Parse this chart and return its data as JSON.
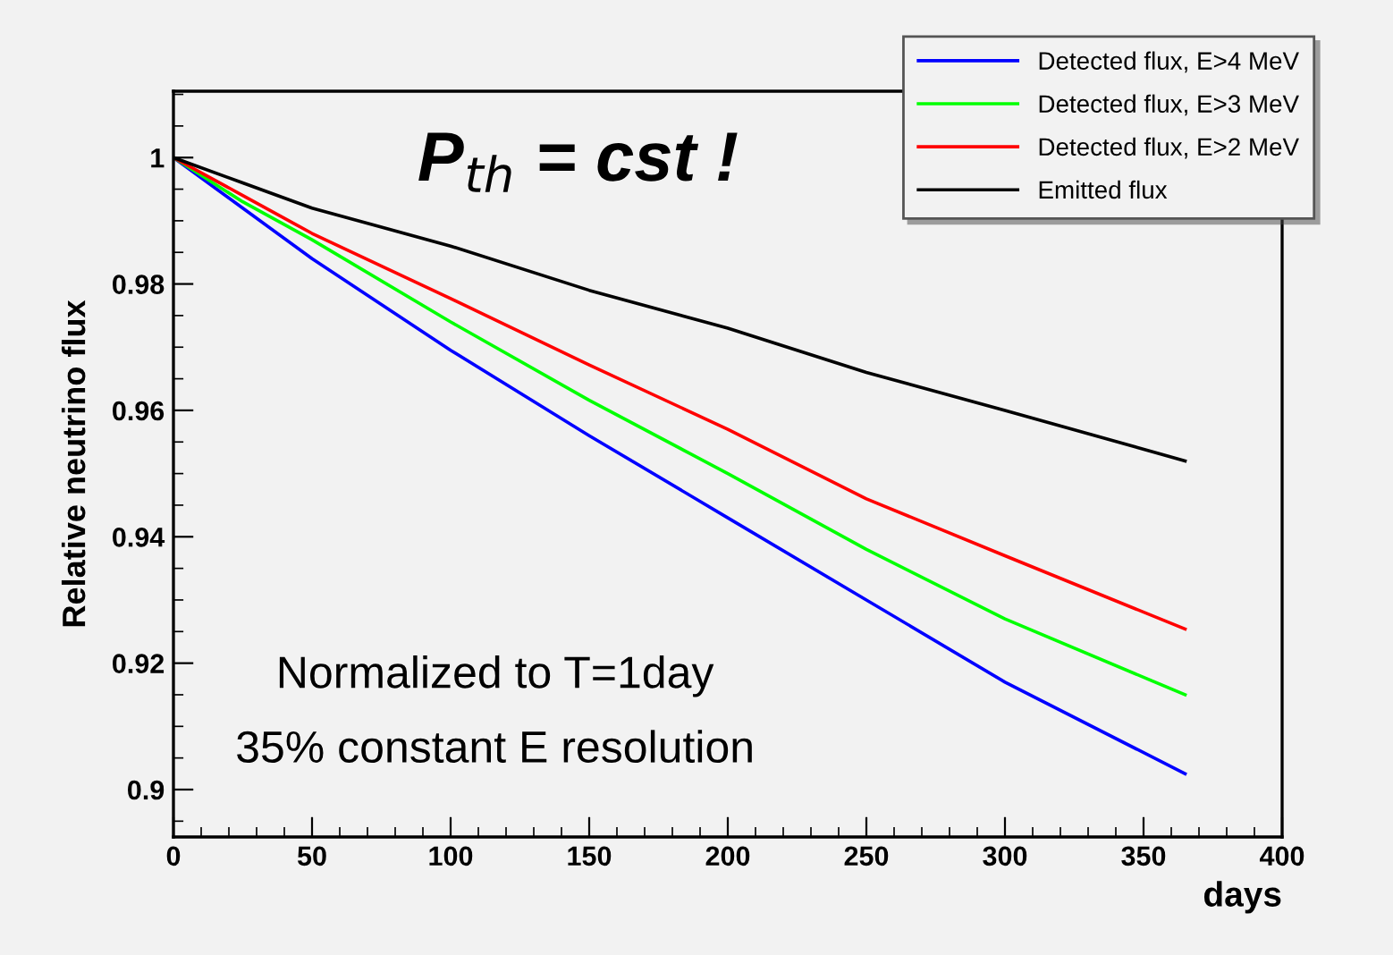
{
  "chart_data": {
    "type": "line",
    "xlabel": "days",
    "ylabel": "Relative neutrino flux",
    "annotations": [
      "P$_{th}$ = cst !",
      "Normalized to T=1day",
      "35% constant E resolution"
    ],
    "x": [
      0,
      25,
      50,
      100,
      150,
      200,
      250,
      300,
      365
    ],
    "series": [
      {
        "name": "Detected flux, E>4 MeV",
        "color": "#0000ff",
        "values": [
          1.0,
          0.992,
          0.984,
          0.9695,
          0.956,
          0.943,
          0.93,
          0.917,
          0.9025
        ]
      },
      {
        "name": "Detected flux, E>3 MeV",
        "color": "#00ff00",
        "values": [
          1.0,
          0.993,
          0.987,
          0.974,
          0.9616,
          0.95,
          0.938,
          0.927,
          0.915
        ]
      },
      {
        "name": "Detected flux, E>2 MeV",
        "color": "#ff0000",
        "values": [
          1.0,
          0.994,
          0.988,
          0.9777,
          0.9672,
          0.957,
          0.946,
          0.937,
          0.9254
        ]
      },
      {
        "name": "Emitted flux",
        "color": "#000000",
        "values": [
          1.0,
          0.996,
          0.992,
          0.986,
          0.979,
          0.973,
          0.966,
          0.96,
          0.952
        ]
      }
    ],
    "xlim": [
      0,
      400
    ],
    "xticks": [
      0,
      50,
      100,
      150,
      200,
      250,
      300,
      350,
      400
    ],
    "ylim": [
      0.8925,
      1.0105
    ],
    "yticks": [
      0.9,
      0.92,
      0.94,
      0.96,
      0.98,
      1
    ],
    "legend": "top right",
    "grid": false,
    "marker": "none",
    "line_style": "solid"
  }
}
